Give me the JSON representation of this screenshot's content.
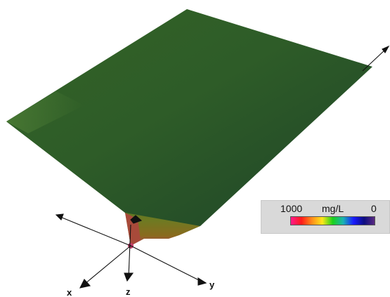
{
  "scene": {
    "axes": {
      "x_label": "x",
      "y_label": "y",
      "z_label": "z"
    },
    "surface_color": "#2e5a26",
    "tip_color": "#c43d6a"
  },
  "legend": {
    "max_label": "1000",
    "unit_label": "mg/L",
    "min_label": "0",
    "colors": [
      "#ff1a8c",
      "#ff1a1a",
      "#ff8c1a",
      "#ffe61a",
      "#1ad11a",
      "#1ab3b3",
      "#1a1aff",
      "#0d0d80",
      "#5a2a80"
    ]
  }
}
